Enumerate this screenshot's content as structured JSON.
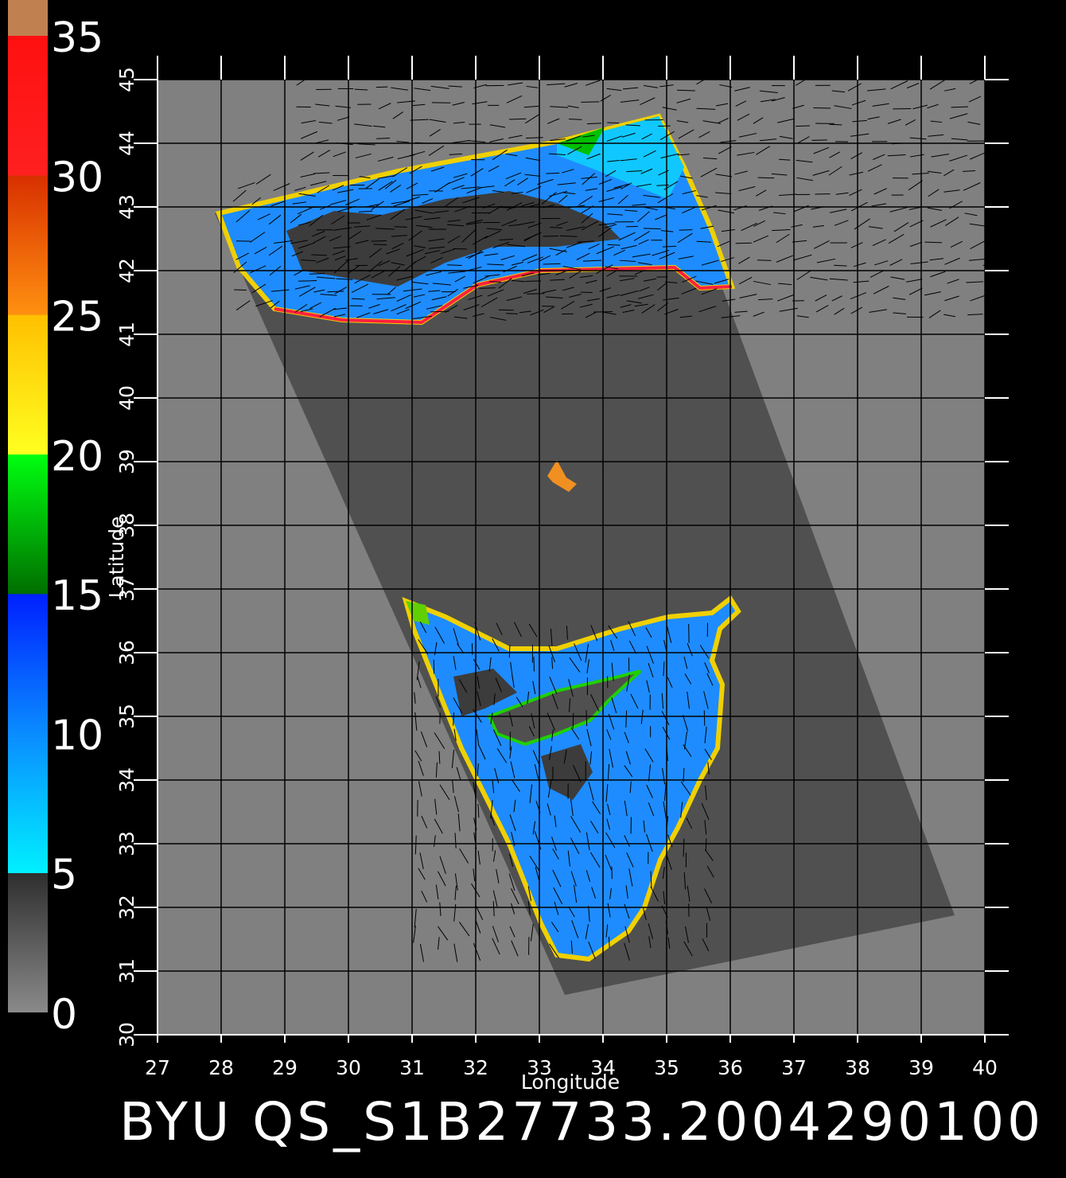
{
  "chart_data": {
    "type": "map",
    "title": "BYU QS_S1B27733.2004290100",
    "xlabel": "Longitude",
    "ylabel": "Latitude",
    "xlim": [
      27,
      40
    ],
    "ylim": [
      30,
      45
    ],
    "xticks": [
      27,
      28,
      29,
      30,
      31,
      32,
      33,
      34,
      35,
      36,
      37,
      38,
      39,
      40
    ],
    "yticks": [
      30,
      31,
      32,
      33,
      34,
      35,
      36,
      37,
      38,
      39,
      40,
      41,
      42,
      43,
      44,
      45
    ],
    "grid": true,
    "colorbar": {
      "lim": [
        0,
        35
      ],
      "ticks": [
        0,
        5,
        10,
        15,
        20,
        25,
        30,
        35
      ],
      "stops": [
        {
          "value": 0,
          "color": "#8a8a8a"
        },
        {
          "value": 4.99,
          "color": "#2e2e2e"
        },
        {
          "value": 5,
          "color": "#00f0ff"
        },
        {
          "value": 10,
          "color": "#0a8cff"
        },
        {
          "value": 14.99,
          "color": "#0020ff"
        },
        {
          "value": 15,
          "color": "#006e00"
        },
        {
          "value": 19.99,
          "color": "#00ff10"
        },
        {
          "value": 20,
          "color": "#ffff20"
        },
        {
          "value": 24.99,
          "color": "#ffc000"
        },
        {
          "value": 25,
          "color": "#ff9010"
        },
        {
          "value": 29.99,
          "color": "#d83000"
        },
        {
          "value": 30,
          "color": "#ff2020"
        },
        {
          "value": 35,
          "color": "#ff1010"
        }
      ]
    }
  }
}
